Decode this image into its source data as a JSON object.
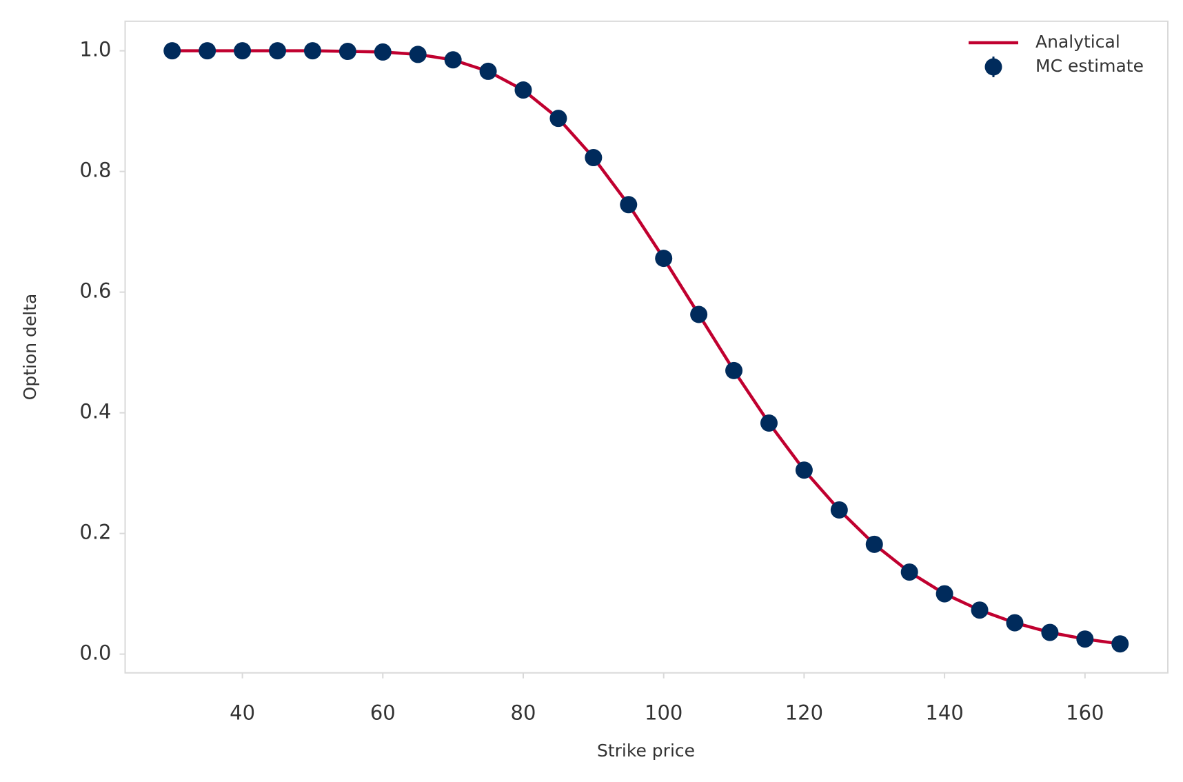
{
  "chart_data": {
    "type": "line",
    "x_label": "Strike price",
    "y_label": "Option delta",
    "x": [
      30,
      35,
      40,
      45,
      50,
      55,
      60,
      65,
      70,
      75,
      80,
      85,
      90,
      95,
      100,
      105,
      110,
      115,
      120,
      125,
      130,
      135,
      140,
      145,
      150,
      155,
      160,
      165
    ],
    "series": [
      {
        "name": "Analytical",
        "type": "line",
        "color": "#c0002f",
        "values": [
          1.0,
          1.0,
          1.0,
          1.0,
          1.0,
          0.999,
          0.998,
          0.994,
          0.985,
          0.966,
          0.935,
          0.888,
          0.823,
          0.745,
          0.656,
          0.563,
          0.47,
          0.383,
          0.305,
          0.239,
          0.182,
          0.136,
          0.1,
          0.073,
          0.052,
          0.036,
          0.025,
          0.017
        ]
      },
      {
        "name": "MC estimate",
        "type": "scatter",
        "color": "#002b5c",
        "values": [
          1.0,
          1.0,
          1.0,
          1.0,
          1.0,
          0.999,
          0.998,
          0.994,
          0.985,
          0.966,
          0.935,
          0.888,
          0.823,
          0.745,
          0.656,
          0.563,
          0.47,
          0.383,
          0.305,
          0.239,
          0.182,
          0.136,
          0.1,
          0.073,
          0.052,
          0.036,
          0.025,
          0.017
        ]
      }
    ],
    "xlim": [
      23.3,
      171.8
    ],
    "ylim": [
      -0.031,
      1.049
    ],
    "xticks": [
      40,
      60,
      80,
      100,
      120,
      140,
      160
    ],
    "yticks": [
      {
        "value": 0,
        "label": "0.0"
      },
      {
        "value": 0.2,
        "label": "0.2"
      },
      {
        "value": 0.4,
        "label": "0.4"
      },
      {
        "value": 0.6,
        "label": "0.6"
      },
      {
        "value": 0.8,
        "label": "0.8"
      },
      {
        "value": 1,
        "label": "1.0"
      }
    ],
    "legend": "upper right",
    "grid": false
  }
}
